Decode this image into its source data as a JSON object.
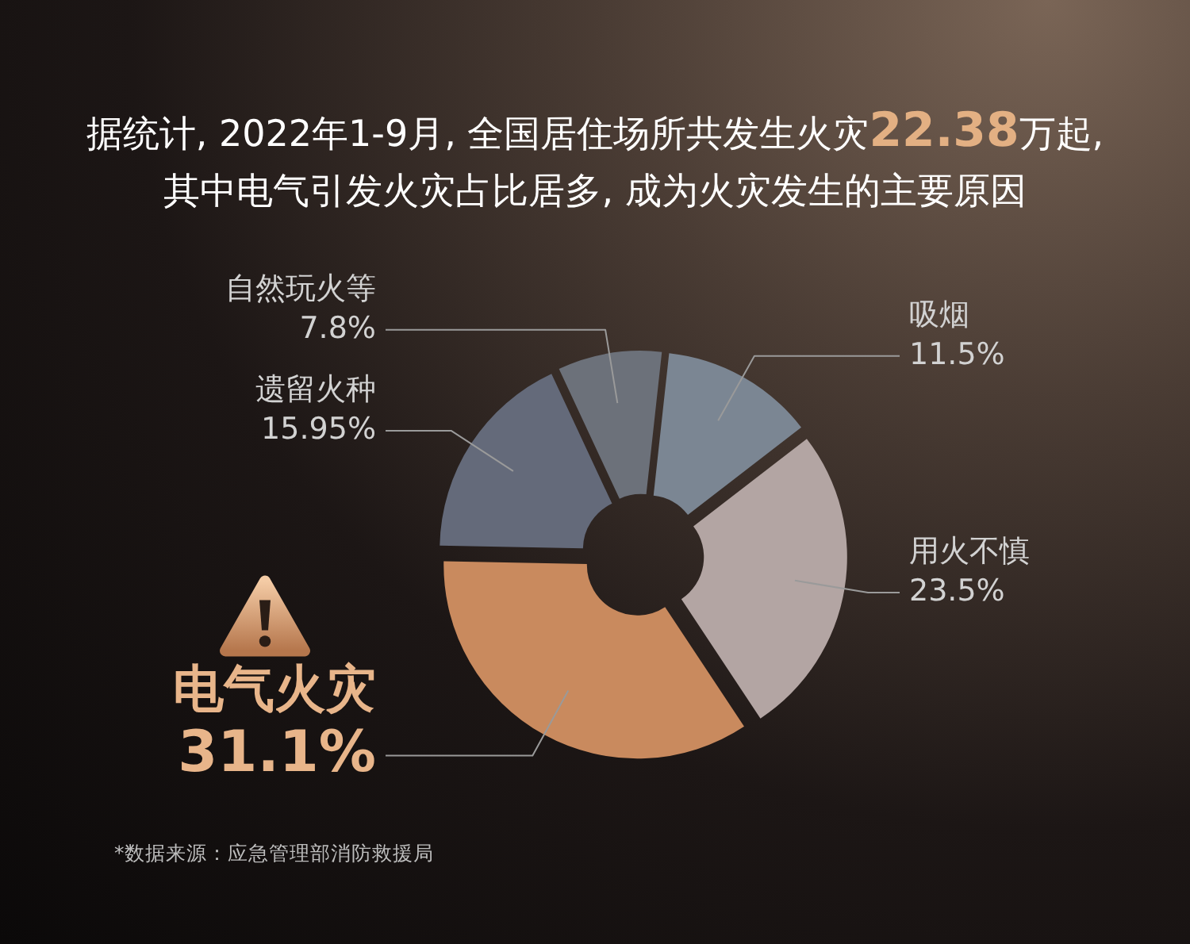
{
  "chart_data": {
    "type": "donut",
    "title": "据统计, 2022年1-9月, 全国居住场所共发生火灾22.38万起,",
    "subtitle": "其中电气引发火灾占比居多, 成为火灾发生的主要原因",
    "categories": [
      "自然玩火等",
      "吸烟",
      "用火不慎",
      "电气火灾",
      "遗留火种"
    ],
    "values": [
      7.8,
      11.5,
      23.5,
      31.1,
      15.95
    ],
    "colors": [
      "#6c717a",
      "#7b8693",
      "#b3a5a3",
      "#c98a5e",
      "#646a7a"
    ],
    "value_labels": [
      "7.8%",
      "11.5%",
      "23.5%",
      "31.1%",
      "15.95%"
    ],
    "annotations": [
      "*数据来源：应急管理部消防救援局"
    ]
  }
}
